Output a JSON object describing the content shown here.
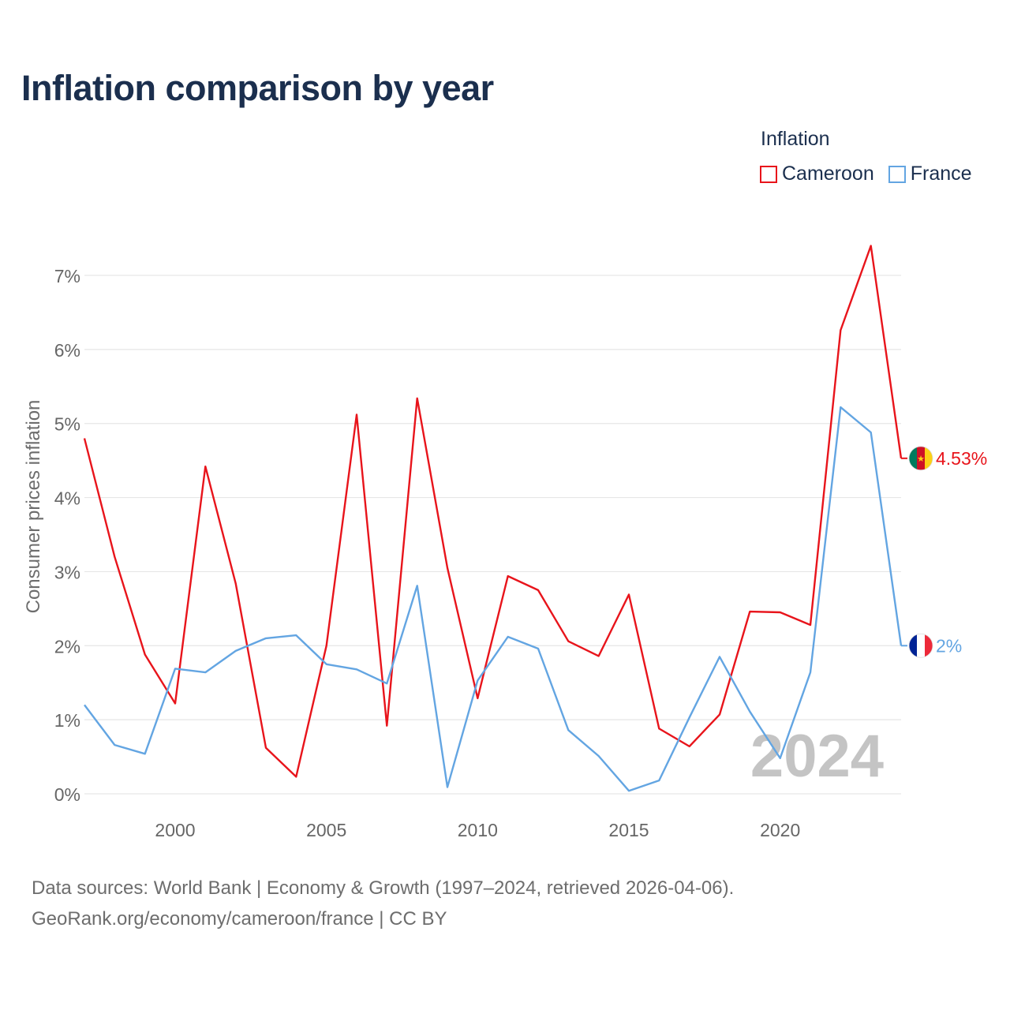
{
  "title": "Inflation comparison by year",
  "legend": {
    "heading": "Inflation",
    "items": [
      {
        "label": "Cameroon",
        "color": "#e8141b"
      },
      {
        "label": "France",
        "color": "#63a5e2"
      }
    ]
  },
  "footer": {
    "line1": "Data sources: World Bank | Economy & Growth (1997–2024, retrieved 2026-04-06).",
    "line2": "GeoRank.org/economy/cameroon/france | CC BY"
  },
  "chart_data": {
    "type": "line",
    "title": "Inflation comparison by year",
    "ylabel": "Consumer prices inflation",
    "xlabel": "",
    "xlim": [
      1997,
      2024
    ],
    "ylim": [
      0,
      7.5
    ],
    "yticks": [
      0,
      1,
      2,
      3,
      4,
      5,
      6,
      7
    ],
    "ytick_labels": [
      "0%",
      "1%",
      "2%",
      "3%",
      "4%",
      "5%",
      "6%",
      "7%"
    ],
    "xticks": [
      2000,
      2005,
      2010,
      2015,
      2020
    ],
    "xtick_labels": [
      "2000",
      "2005",
      "2010",
      "2015",
      "2020"
    ],
    "watermark": "2024",
    "x": [
      1997,
      1998,
      1999,
      2000,
      2001,
      2002,
      2003,
      2004,
      2005,
      2006,
      2007,
      2008,
      2009,
      2010,
      2011,
      2012,
      2013,
      2014,
      2015,
      2016,
      2017,
      2018,
      2019,
      2020,
      2021,
      2022,
      2023,
      2024
    ],
    "series": [
      {
        "name": "Cameroon",
        "color": "#e8141b",
        "end_label": "4.53%",
        "flag": "cameroon-flag-icon",
        "values": [
          4.8,
          3.2,
          1.88,
          1.22,
          4.42,
          2.84,
          0.62,
          0.23,
          2.0,
          5.12,
          0.92,
          5.34,
          3.05,
          1.29,
          2.94,
          2.75,
          2.06,
          1.86,
          2.69,
          0.88,
          0.64,
          1.07,
          2.46,
          2.45,
          2.28,
          6.26,
          7.4,
          4.53
        ]
      },
      {
        "name": "France",
        "color": "#63a5e2",
        "end_label": "2%",
        "flag": "france-flag-icon",
        "values": [
          1.2,
          0.66,
          0.54,
          1.69,
          1.64,
          1.93,
          2.1,
          2.14,
          1.75,
          1.68,
          1.49,
          2.81,
          0.09,
          1.53,
          2.12,
          1.96,
          0.86,
          0.51,
          0.04,
          0.18,
          1.03,
          1.85,
          1.11,
          0.48,
          1.64,
          5.22,
          4.88,
          2.0
        ]
      }
    ]
  }
}
